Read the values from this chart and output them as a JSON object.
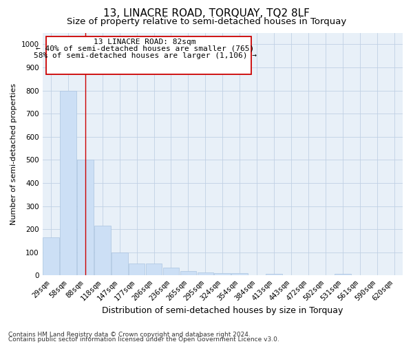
{
  "title": "13, LINACRE ROAD, TORQUAY, TQ2 8LF",
  "subtitle": "Size of property relative to semi-detached houses in Torquay",
  "xlabel": "Distribution of semi-detached houses by size in Torquay",
  "ylabel": "Number of semi-detached properties",
  "categories": [
    "29sqm",
    "58sqm",
    "88sqm",
    "118sqm",
    "147sqm",
    "177sqm",
    "206sqm",
    "236sqm",
    "265sqm",
    "295sqm",
    "324sqm",
    "354sqm",
    "384sqm",
    "413sqm",
    "443sqm",
    "472sqm",
    "502sqm",
    "531sqm",
    "561sqm",
    "590sqm",
    "620sqm"
  ],
  "values": [
    165,
    800,
    500,
    215,
    100,
    52,
    52,
    33,
    20,
    13,
    10,
    10,
    0,
    8,
    0,
    0,
    0,
    8,
    0,
    0,
    0
  ],
  "bar_color": "#ccdff5",
  "bar_edge_color": "#aac4e0",
  "vline_x_index": 2,
  "vline_color": "#cc0000",
  "ylim": [
    0,
    1050
  ],
  "yticks": [
    0,
    100,
    200,
    300,
    400,
    500,
    600,
    700,
    800,
    900,
    1000
  ],
  "annotation_title": "13 LINACRE ROAD: 82sqm",
  "annotation_line1": "← 40% of semi-detached houses are smaller (765)",
  "annotation_line2": "58% of semi-detached houses are larger (1,106) →",
  "annotation_box_color": "#ffffff",
  "annotation_box_edge_color": "#cc0000",
  "footer_line1": "Contains HM Land Registry data © Crown copyright and database right 2024.",
  "footer_line2": "Contains public sector information licensed under the Open Government Licence v3.0.",
  "background_color": "#ffffff",
  "plot_bg_color": "#e8f0f8",
  "grid_color": "#c0d0e4",
  "title_fontsize": 11,
  "subtitle_fontsize": 9.5,
  "xlabel_fontsize": 9,
  "ylabel_fontsize": 8,
  "tick_fontsize": 7.5,
  "annotation_fontsize": 8,
  "footer_fontsize": 6.5
}
